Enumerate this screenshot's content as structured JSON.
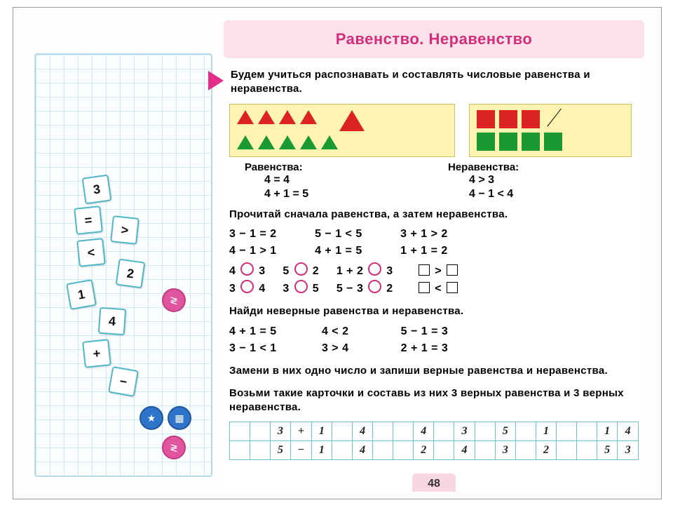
{
  "title": "Равенство.  Неравенство",
  "intro": "Будем учиться распознавать и составлять числовые равенства и неравенства.",
  "colors": {
    "accent_pink": "#d22e7a",
    "title_bg": "#fbe1ea",
    "grid_line": "#cfe9f2",
    "card_border": "#4fb7c7",
    "shape_box_bg": "#fcf4b0",
    "shape_red": "#d22",
    "shape_green": "#1a9933",
    "badge_pink": "#e0559d",
    "badge_blue": "#2e74c9",
    "ans_grid_border": "#6ac3d3"
  },
  "cards": [
    "3",
    "=",
    ">",
    "<",
    "2",
    "1",
    "4",
    "+",
    "−"
  ],
  "labels": {
    "eq": "Равенства:",
    "neq": "Неравенства:"
  },
  "eq_examples": "4 = 4\n4 + 1 = 5",
  "neq_examples": "4 > 3\n4 − 1 < 4",
  "task1": "Прочитай сначала равенства, а затем неравенства.",
  "task1_rows": [
    [
      "3 − 1 = 2",
      "5 − 1 < 5",
      "3 + 1 > 2"
    ],
    [
      "4 − 1 > 1",
      "4 + 1 = 5",
      "1 + 1 = 2"
    ]
  ],
  "circle_rows": [
    {
      "a": "4",
      "b": "3",
      "c": "5",
      "d": "2",
      "e": "1 + 2",
      "f": "3",
      "g_gt": true
    },
    {
      "a": "3",
      "b": "4",
      "c": "3",
      "d": "5",
      "e": "5 − 3",
      "f": "2",
      "g_gt": false
    }
  ],
  "task2": "Найди неверные равенства и неравенства.",
  "task2_rows": [
    [
      "4 + 1 = 5",
      "4 < 2",
      "5 − 1 = 3"
    ],
    [
      "3 − 1 < 1",
      "3 > 4",
      "2 + 1 = 3"
    ]
  ],
  "task3": "Замени в них одно число и запиши верные равенства и неравенства.",
  "task4": "Возьми такие карточки и составь из них 3 верных равенства и 3 верных неравенства.",
  "ans_grid": {
    "cols": 20,
    "rows": [
      [
        "",
        "",
        "3",
        "+",
        "1",
        "",
        "4",
        "",
        "",
        "4",
        "",
        "3",
        "",
        "5",
        "",
        "1",
        "",
        "",
        "1",
        "4"
      ],
      [
        "",
        "",
        "5",
        "−",
        "1",
        "",
        "4",
        "",
        "",
        "2",
        "",
        "4",
        "",
        "3",
        "",
        "2",
        "",
        "",
        "5",
        "3"
      ]
    ]
  },
  "page_number": "48"
}
